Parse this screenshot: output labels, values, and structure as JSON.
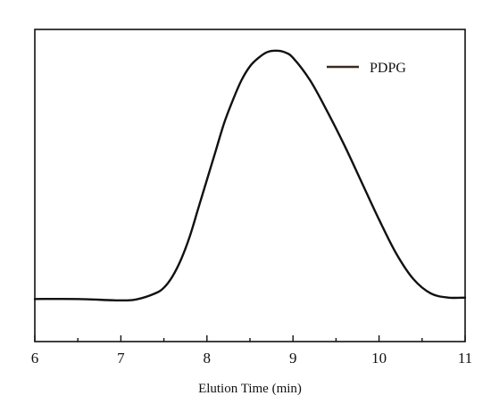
{
  "chart_data": {
    "type": "line",
    "title": "",
    "xlabel": "Elution Time (min)",
    "ylabel": "",
    "xlim": [
      6,
      11
    ],
    "ylim": [
      0,
      1.1
    ],
    "x_ticks": [
      "6",
      "7",
      "8",
      "9",
      "10",
      "11"
    ],
    "y_ticks_labeled": false,
    "grid": false,
    "legend": {
      "position": "top-right"
    },
    "series": [
      {
        "name": "PDPG",
        "color": "#111111",
        "x": [
          6.0,
          6.5,
          7.0,
          7.2,
          7.4,
          7.5,
          7.6,
          7.7,
          7.8,
          7.9,
          8.0,
          8.1,
          8.2,
          8.3,
          8.4,
          8.5,
          8.6,
          8.7,
          8.8,
          8.9,
          9.0,
          9.2,
          9.4,
          9.6,
          9.8,
          10.0,
          10.2,
          10.4,
          10.6,
          10.8,
          11.0
        ],
        "y": [
          0.15,
          0.15,
          0.145,
          0.15,
          0.17,
          0.19,
          0.23,
          0.29,
          0.37,
          0.47,
          0.57,
          0.67,
          0.77,
          0.85,
          0.92,
          0.97,
          1.0,
          1.02,
          1.025,
          1.02,
          1.0,
          0.92,
          0.81,
          0.69,
          0.56,
          0.43,
          0.31,
          0.22,
          0.17,
          0.155,
          0.155
        ]
      }
    ]
  }
}
